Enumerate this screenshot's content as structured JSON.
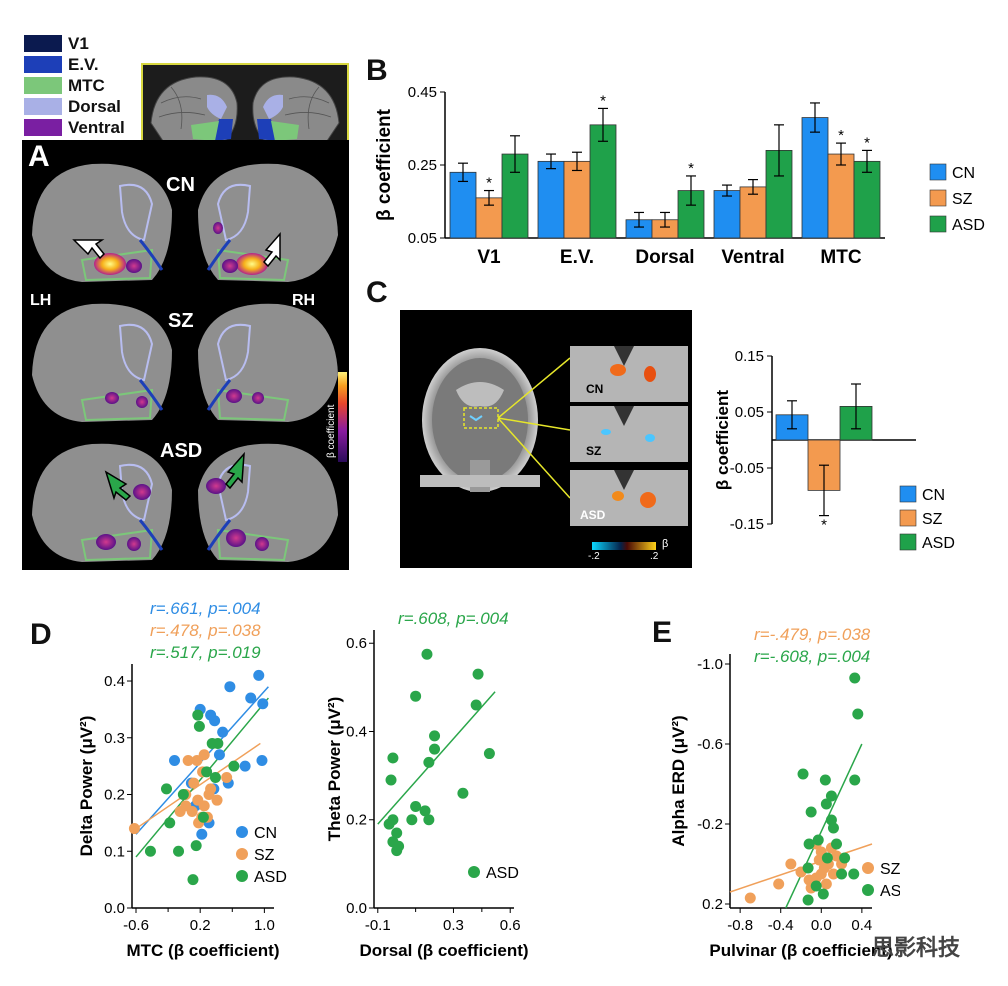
{
  "colors": {
    "cn": "#2f8de4",
    "sz": "#f0a05a",
    "asd": "#2aa64a",
    "cn_bar": "#1f8ef1",
    "sz_bar": "#f39a4f",
    "asd_bar": "#1fa14a"
  },
  "panel_a": {
    "label": "A",
    "roi_legend": [
      {
        "name": "V1",
        "color": "#0b1a4f"
      },
      {
        "name": "E.V.",
        "color": "#1d3fb8"
      },
      {
        "name": "MTC",
        "color": "#7cc77a"
      },
      {
        "name": "Dorsal",
        "color": "#a9b0e6"
      },
      {
        "name": "Ventral",
        "color": "#7a1fa2"
      }
    ],
    "groups": [
      "CN",
      "SZ",
      "ASD"
    ],
    "lh": "LH",
    "rh": "RH",
    "colorbar_label": "β coefficient"
  },
  "chart_data": [
    {
      "type": "bar",
      "id": "B",
      "panel_label": "B",
      "categories": [
        "V1",
        "E.V.",
        "Dorsal",
        "Ventral",
        "MTC"
      ],
      "series": [
        {
          "name": "CN",
          "values": [
            0.23,
            0.26,
            0.1,
            0.18,
            0.38
          ],
          "err": [
            0.025,
            0.02,
            0.02,
            0.015,
            0.04
          ]
        },
        {
          "name": "SZ",
          "values": [
            0.16,
            0.26,
            0.1,
            0.19,
            0.28
          ],
          "err": [
            0.02,
            0.025,
            0.02,
            0.02,
            0.03
          ]
        },
        {
          "name": "ASD",
          "values": [
            0.28,
            0.36,
            0.18,
            0.29,
            0.26
          ],
          "err": [
            0.05,
            0.045,
            0.04,
            0.07,
            0.03
          ]
        }
      ],
      "stars": [
        [
          1,
          0
        ],
        [
          2,
          1
        ],
        [
          2,
          2
        ],
        [
          1,
          4
        ],
        [
          2,
          4
        ]
      ],
      "star": "*",
      "ylabel": "β coefficient",
      "yticks": [
        "0.05",
        "0.25",
        "0.45"
      ],
      "ylim": [
        0.05,
        0.45
      ]
    },
    {
      "type": "bar",
      "id": "C",
      "panel_label": "C",
      "categories": [
        "CN",
        "SZ",
        "ASD"
      ],
      "values": [
        0.045,
        -0.09,
        0.06
      ],
      "err": [
        0.025,
        0.045,
        0.04
      ],
      "star": "*",
      "ylabel": "β coefficient",
      "yticks": [
        "0.15",
        "0.05",
        "-0.05",
        "-0.15"
      ],
      "ylim": [
        -0.15,
        0.15
      ],
      "images": [
        "CN",
        "SZ",
        "ASD"
      ],
      "colorbar": {
        "min": "-.2",
        "max": ".2",
        "label": "β"
      }
    },
    {
      "type": "scatter",
      "id": "D1",
      "panel_label": "D",
      "xlabel": "MTC (β coefficient)",
      "ylabel": "Delta Power (μV²)",
      "xticks": [
        "-0.6",
        "0.2",
        "1.0"
      ],
      "xtick_vals": [
        -0.6,
        0.2,
        1.0
      ],
      "xminor": [
        "-0.2",
        "0.6"
      ],
      "xminor_vals": [
        -0.2,
        0.6
      ],
      "yticks": [
        "0.0",
        "0.1",
        "0.2",
        "0.3",
        "0.4"
      ],
      "ytick_vals": [
        0,
        0.1,
        0.2,
        0.3,
        0.4
      ],
      "xlim": [
        -0.65,
        1.12
      ],
      "ylim": [
        0,
        0.43
      ],
      "stats": [
        {
          "text": "r=.661, p=.004",
          "color": "#2f8de4"
        },
        {
          "text": "r=.478, p=.038",
          "color": "#f0a05a"
        },
        {
          "text": "r=.517, p=.019",
          "color": "#2aa64a"
        }
      ],
      "legend": [
        "CN",
        "SZ",
        "ASD"
      ],
      "series": [
        {
          "name": "CN",
          "color": "#2f8de4",
          "points": [
            [
              0.93,
              0.41
            ],
            [
              0.57,
              0.39
            ],
            [
              0.83,
              0.37
            ],
            [
              0.38,
              0.33
            ],
            [
              0.33,
              0.34
            ],
            [
              0.2,
              0.35
            ],
            [
              0.48,
              0.31
            ],
            [
              0.44,
              0.27
            ],
            [
              0.76,
              0.25
            ],
            [
              0.97,
              0.26
            ],
            [
              -0.12,
              0.26
            ],
            [
              0.09,
              0.22
            ],
            [
              0.14,
              0.18
            ],
            [
              0.55,
              0.22
            ],
            [
              0.31,
              0.15
            ],
            [
              0.22,
              0.13
            ],
            [
              0.98,
              0.36
            ],
            [
              0.37,
              0.21
            ]
          ],
          "line": [
            [
              -0.6,
              0.13
            ],
            [
              1.05,
              0.39
            ]
          ]
        },
        {
          "name": "SZ",
          "color": "#f0a05a",
          "points": [
            [
              -0.62,
              0.14
            ],
            [
              0.05,
              0.26
            ],
            [
              0.16,
              0.26
            ],
            [
              0.25,
              0.27
            ],
            [
              0.23,
              0.24
            ],
            [
              0.12,
              0.22
            ],
            [
              0.02,
              0.2
            ],
            [
              0.31,
              0.2
            ],
            [
              0.17,
              0.19
            ],
            [
              0.25,
              0.18
            ],
            [
              0.1,
              0.17
            ],
            [
              0.29,
              0.16
            ],
            [
              0.22,
              0.16
            ],
            [
              0.02,
              0.18
            ],
            [
              0.53,
              0.23
            ],
            [
              0.33,
              0.21
            ],
            [
              -0.05,
              0.17
            ],
            [
              0.18,
              0.15
            ],
            [
              0.41,
              0.19
            ]
          ],
          "line": [
            [
              -0.6,
              0.14
            ],
            [
              0.95,
              0.29
            ]
          ]
        },
        {
          "name": "ASD",
          "color": "#2aa64a",
          "points": [
            [
              0.17,
              0.34
            ],
            [
              0.19,
              0.32
            ],
            [
              0.42,
              0.29
            ],
            [
              0.39,
              0.23
            ],
            [
              -0.42,
              0.1
            ],
            [
              -0.18,
              0.15
            ],
            [
              -0.22,
              0.21
            ],
            [
              -0.07,
              0.1
            ],
            [
              0.15,
              0.11
            ],
            [
              0.11,
              0.05
            ],
            [
              0.28,
              0.24
            ],
            [
              0.62,
              0.25
            ],
            [
              0.24,
              0.16
            ],
            [
              -0.01,
              0.2
            ],
            [
              0.35,
              0.29
            ]
          ],
          "line": [
            [
              -0.6,
              0.09
            ],
            [
              1.05,
              0.37
            ]
          ]
        }
      ]
    },
    {
      "type": "scatter",
      "id": "D2",
      "xlabel": "Dorsal (β coefficient)",
      "ylabel": "Theta Power (μV²)",
      "xticks": [
        "-0.1",
        "0.3",
        "0.6"
      ],
      "xtick_vals": [
        -0.1,
        0.3,
        0.6
      ],
      "xminor": [
        "0.1",
        "0.45"
      ],
      "xminor_vals": [
        0.1,
        0.45
      ],
      "yticks": [
        "0.0",
        "0.2",
        "0.4",
        "0.6"
      ],
      "ytick_vals": [
        0,
        0.2,
        0.4,
        0.6
      ],
      "xlim": [
        -0.12,
        0.62
      ],
      "ylim": [
        0,
        0.63
      ],
      "stats": [
        {
          "text": "r=.608, p=.004",
          "color": "#2aa64a"
        }
      ],
      "legend": [
        "ASD"
      ],
      "series": [
        {
          "name": "ASD",
          "color": "#2aa64a",
          "points": [
            [
              0.16,
              0.575
            ],
            [
              0.43,
              0.53
            ],
            [
              0.1,
              0.48
            ],
            [
              0.42,
              0.46
            ],
            [
              0.2,
              0.39
            ],
            [
              0.2,
              0.36
            ],
            [
              -0.02,
              0.34
            ],
            [
              0.17,
              0.33
            ],
            [
              0.49,
              0.35
            ],
            [
              -0.03,
              0.29
            ],
            [
              0.35,
              0.26
            ],
            [
              0.1,
              0.23
            ],
            [
              0.15,
              0.22
            ],
            [
              -0.02,
              0.2
            ],
            [
              -0.04,
              0.19
            ],
            [
              0.08,
              0.2
            ],
            [
              0.17,
              0.2
            ],
            [
              0.0,
              0.17
            ],
            [
              -0.02,
              0.15
            ],
            [
              0.01,
              0.14
            ],
            [
              0.0,
              0.13
            ]
          ],
          "line": [
            [
              -0.1,
              0.19
            ],
            [
              0.52,
              0.49
            ]
          ]
        }
      ]
    },
    {
      "type": "scatter",
      "id": "E",
      "panel_label": "E",
      "xlabel": "Pulvinar (β coefficient)",
      "ylabel": "Alpha ERD (μV²)",
      "xticks": [
        "-0.8",
        "-0.4",
        "0.0",
        "0.4"
      ],
      "xtick_vals": [
        -0.8,
        -0.4,
        0.0,
        0.4
      ],
      "yticks": [
        "-1.0",
        "-0.6",
        "-0.2",
        "0.2"
      ],
      "ytick_vals": [
        -1.0,
        -0.6,
        -0.2,
        0.2
      ],
      "xlim": [
        -0.9,
        0.5
      ],
      "ylim": [
        0.22,
        -1.05
      ],
      "y_inverted": true,
      "stats": [
        {
          "text": "r=-.479, p=.038",
          "color": "#f0a05a"
        },
        {
          "text": "r=-.608, p=.004",
          "color": "#2aa64a"
        }
      ],
      "legend": [
        "SZ",
        "ASD"
      ],
      "series": [
        {
          "name": "SZ",
          "color": "#f0a05a",
          "points": [
            [
              -0.7,
              0.17
            ],
            [
              -0.42,
              0.1
            ],
            [
              -0.3,
              0.0
            ],
            [
              -0.2,
              0.04
            ],
            [
              -0.12,
              0.08
            ],
            [
              -0.05,
              0.07
            ],
            [
              0.0,
              0.05
            ],
            [
              0.03,
              0.02
            ],
            [
              0.07,
              0.0
            ],
            [
              0.0,
              -0.06
            ],
            [
              -0.05,
              -0.1
            ],
            [
              0.1,
              -0.08
            ],
            [
              0.15,
              -0.04
            ],
            [
              -0.02,
              -0.02
            ],
            [
              0.05,
              0.1
            ],
            [
              0.2,
              0.0
            ],
            [
              -0.1,
              0.12
            ],
            [
              0.12,
              0.05
            ]
          ],
          "line": [
            [
              -0.9,
              0.14
            ],
            [
              0.5,
              -0.1
            ]
          ]
        },
        {
          "name": "ASD",
          "color": "#2aa64a",
          "points": [
            [
              0.33,
              -0.93
            ],
            [
              0.36,
              -0.75
            ],
            [
              -0.18,
              -0.45
            ],
            [
              0.04,
              -0.42
            ],
            [
              0.1,
              -0.34
            ],
            [
              0.33,
              -0.42
            ],
            [
              0.05,
              -0.3
            ],
            [
              -0.1,
              -0.26
            ],
            [
              0.1,
              -0.22
            ],
            [
              0.12,
              -0.18
            ],
            [
              -0.12,
              -0.1
            ],
            [
              -0.03,
              -0.12
            ],
            [
              0.15,
              -0.1
            ],
            [
              0.06,
              -0.03
            ],
            [
              -0.13,
              0.02
            ],
            [
              0.2,
              0.05
            ],
            [
              -0.05,
              0.11
            ],
            [
              0.02,
              0.15
            ],
            [
              -0.13,
              0.18
            ],
            [
              0.32,
              0.05
            ],
            [
              0.23,
              -0.03
            ]
          ],
          "line": [
            [
              -0.35,
              0.22
            ],
            [
              0.4,
              -0.6
            ]
          ]
        }
      ]
    }
  ],
  "watermark": "思影科技"
}
